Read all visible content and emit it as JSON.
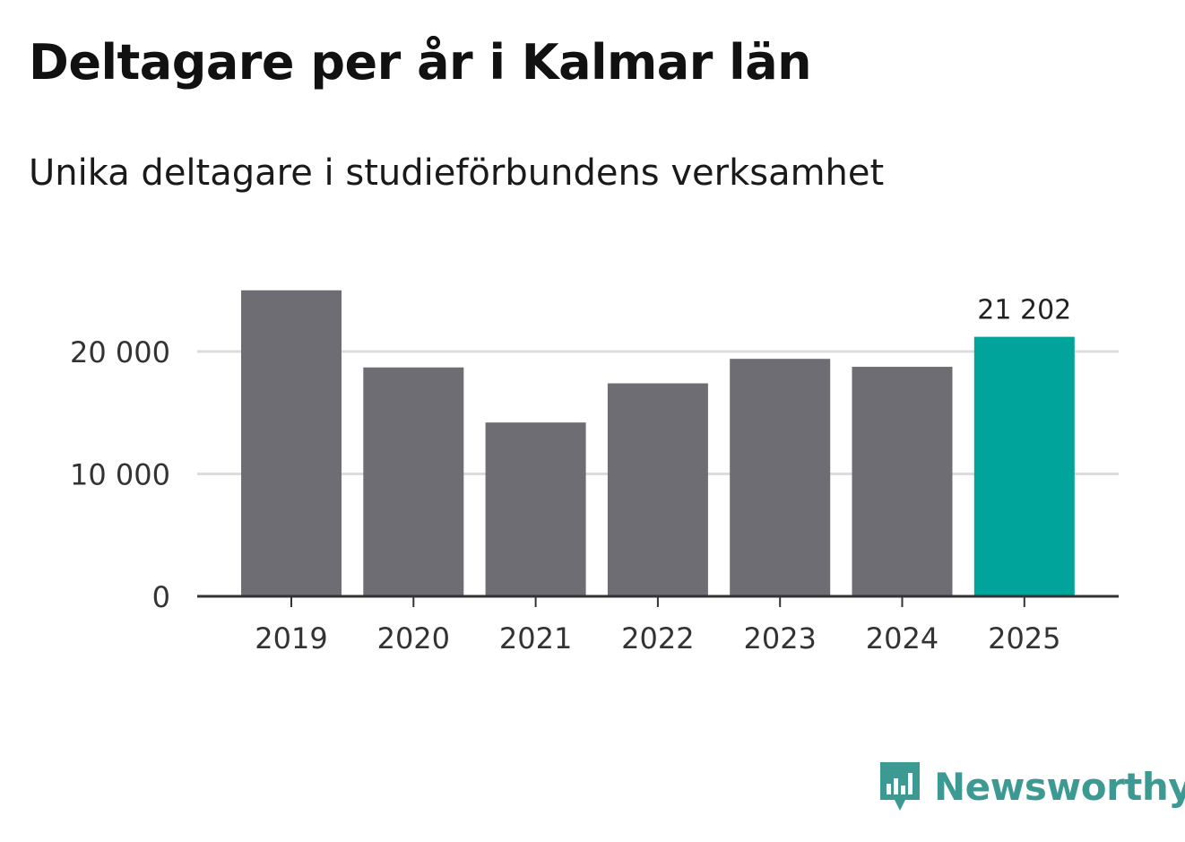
{
  "title": "Deltagare per år i Kalmar län",
  "subtitle": "Unika deltagare i studieförbundens verksamhet",
  "brand": {
    "name": "Newsworthy",
    "icon": "newsworthy-logo-icon",
    "color": "#3d9a93"
  },
  "colors": {
    "bar": "#6e6d73",
    "highlight": "#00a49a",
    "grid": "#dcdcdc",
    "axis": "#333333"
  },
  "chart_data": {
    "type": "bar",
    "title": "Deltagare per år i Kalmar län",
    "subtitle": "Unika deltagare i studieförbundens verksamhet",
    "xlabel": "",
    "ylabel": "",
    "categories": [
      "2019",
      "2020",
      "2021",
      "2022",
      "2023",
      "2024",
      "2025"
    ],
    "values": [
      25000,
      18700,
      14200,
      17400,
      19400,
      18750,
      21202
    ],
    "highlight_index": 6,
    "highlight_label": "21 202",
    "ylim": [
      0,
      26000
    ],
    "yticks": [
      0,
      10000,
      20000
    ],
    "ytick_labels": [
      "0",
      "10 000",
      "20 000"
    ],
    "grid": true
  }
}
